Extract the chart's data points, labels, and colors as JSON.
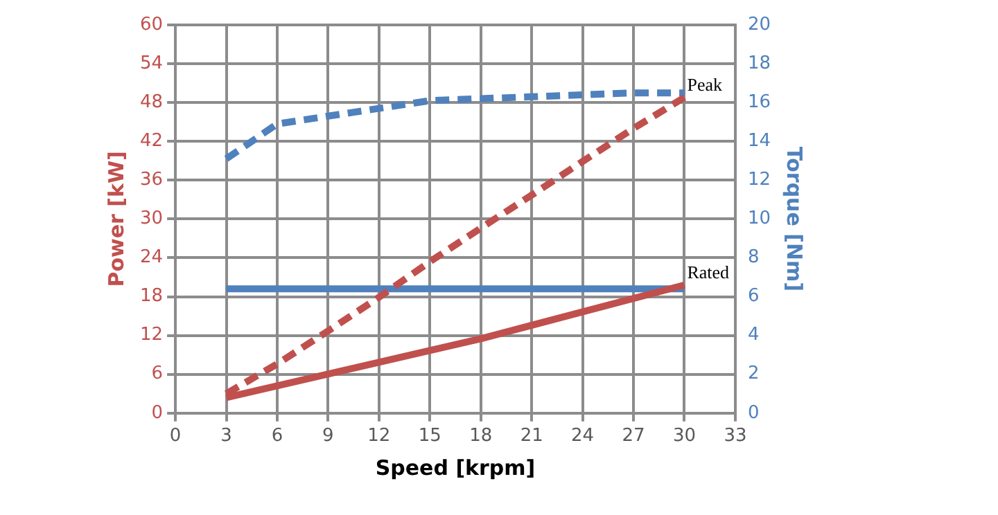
{
  "chart_data": {
    "type": "line",
    "xlabel": "Speed [krpm]",
    "ylabel": "Power [kW]",
    "y2label": "Torque [Nm]",
    "xlim": [
      0,
      33
    ],
    "xticks": [
      0,
      3,
      6,
      9,
      12,
      15,
      18,
      21,
      24,
      27,
      30,
      33
    ],
    "ylim": [
      0,
      60
    ],
    "yticks": [
      0,
      6,
      12,
      18,
      24,
      30,
      36,
      42,
      48,
      54,
      60
    ],
    "y2lim": [
      0,
      20
    ],
    "y2ticks": [
      0,
      2,
      4,
      6,
      8,
      10,
      12,
      14,
      16,
      18,
      20
    ],
    "grid": true,
    "legend": false,
    "marker": "none",
    "series": [
      {
        "color": "#c0504d",
        "line_style": "dashed",
        "x": [
          3,
          6,
          9,
          12,
          15,
          18,
          21,
          24,
          27,
          30
        ],
        "values": [
          3,
          7.6,
          12.7,
          17.9,
          23.4,
          28.6,
          33.7,
          38.9,
          44,
          48.8
        ]
      },
      {
        "color": "#c0504d",
        "line_style": "solid",
        "x": [
          3,
          18,
          30
        ],
        "values": [
          2.4,
          11.5,
          19.8
        ]
      },
      {
        "color": "#4f81bd",
        "line_style": "dashed",
        "axis": "y2",
        "x": [
          3,
          6,
          9,
          12,
          15,
          18,
          21,
          24,
          27,
          30
        ],
        "values": [
          13.1,
          14.9,
          15.3,
          15.7,
          16.1,
          16.2,
          16.3,
          16.4,
          16.5,
          16.5
        ]
      },
      {
        "color": "#4f81bd",
        "line_style": "solid",
        "axis": "y2",
        "x": [
          3,
          30
        ],
        "values": [
          6.4,
          6.4
        ]
      }
    ],
    "annotations": [
      {
        "text": "Peak",
        "x": 30,
        "y": 48.8
      },
      {
        "text": "Rated",
        "x": 30,
        "y": 19.8
      }
    ]
  }
}
